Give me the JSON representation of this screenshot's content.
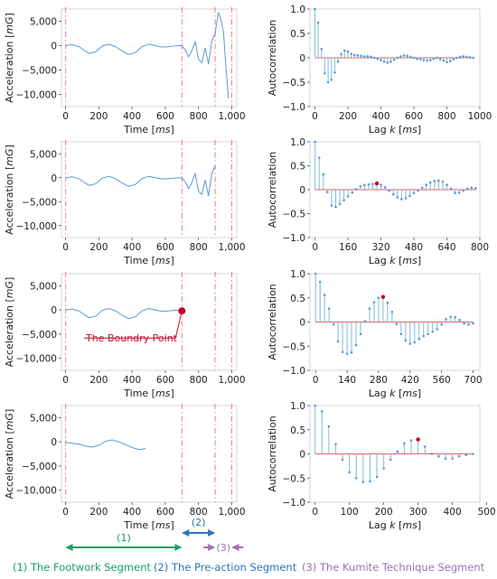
{
  "colors": {
    "signal": "#5b9bd5",
    "acf_stem": "#7fb9d9",
    "acf_red": "#e06666",
    "peak": "#c0001a",
    "boundary": "#ef7f7f",
    "seg1": "#1a9e6a",
    "seg2": "#2e75b6",
    "seg3": "#a26fb5",
    "axis": "#555555",
    "boundary_label": "#c8102e"
  },
  "left_axis": {
    "ylabel_text": "Acceleration",
    "ylabel_unit": "mG",
    "xlabel_text": "Time",
    "xlabel_unit": "ms",
    "yticks": [
      5000,
      0,
      -5000,
      -10000
    ],
    "ytick_labels": [
      "5,000",
      "0",
      "−5,000",
      "−10,000"
    ],
    "xticks": [
      0,
      200,
      400,
      600,
      800,
      1000
    ],
    "xtick_labels": [
      "0",
      "200",
      "400",
      "600",
      "800",
      "1,000"
    ],
    "xlim": [
      -25,
      1030
    ],
    "ylim": [
      -12500,
      7500
    ],
    "boundaries": [
      0,
      700,
      900,
      1000
    ]
  },
  "right_axis": {
    "ylabel": "Autocorrelation",
    "xlabel_text": "Lag",
    "xlabel_k": "k",
    "xlabel_unit": "ms",
    "yticks": [
      1.0,
      0.5,
      0.0,
      -0.5,
      -1.0
    ],
    "ytick_labels": [
      "1.0",
      "0.5",
      "0",
      "−0.5",
      "−1.0"
    ]
  },
  "annotations": {
    "boundary_point_label": "The Boundry Point",
    "seg1_short": "(1)",
    "seg2_short": "(2)",
    "seg3_short": "(3)",
    "seg1_label": "(1) The Footwork Segment",
    "seg2_label": "(2) The Pre-action Segment",
    "seg3_label": "(3) The Kumite Technique Segment"
  },
  "chart_data": [
    {
      "type": "line",
      "panel": "row1-signal",
      "xlabel": "Time [ms]",
      "ylabel": "Acceleration [mG]",
      "xlim": [
        -25,
        1030
      ],
      "ylim": [
        -12500,
        7500
      ],
      "x": [
        0,
        40,
        80,
        110,
        140,
        180,
        220,
        260,
        300,
        340,
        380,
        420,
        460,
        500,
        540,
        580,
        620,
        660,
        700,
        720,
        740,
        760,
        780,
        800,
        820,
        840,
        860,
        880,
        900,
        910,
        920,
        935,
        950,
        960,
        970,
        980
      ],
      "y": [
        0,
        200,
        -200,
        -900,
        -1600,
        -1300,
        -100,
        300,
        -200,
        -1100,
        -1800,
        -1400,
        -200,
        300,
        0,
        -300,
        -200,
        -50,
        0,
        -900,
        -2300,
        -1000,
        800,
        -2800,
        -3500,
        -500,
        -3800,
        900,
        2500,
        4800,
        6800,
        5300,
        2800,
        -2000,
        -6500,
        -10800
      ]
    },
    {
      "type": "line",
      "panel": "row2-signal",
      "xlabel": "Time [ms]",
      "ylabel": "Acceleration [mG]",
      "xlim": [
        -25,
        1030
      ],
      "ylim": [
        -12500,
        7500
      ],
      "x": [
        0,
        40,
        80,
        110,
        140,
        180,
        220,
        260,
        300,
        340,
        380,
        420,
        460,
        500,
        540,
        580,
        620,
        660,
        700,
        720,
        740,
        760,
        780,
        800,
        820,
        840,
        860,
        880,
        900
      ],
      "y": [
        0,
        200,
        -200,
        -900,
        -1600,
        -1300,
        -100,
        300,
        -200,
        -1100,
        -1800,
        -1400,
        -200,
        300,
        0,
        -300,
        -200,
        -50,
        0,
        -900,
        -2300,
        -1000,
        800,
        -2800,
        -3500,
        -500,
        -3800,
        900,
        2500
      ]
    },
    {
      "type": "line",
      "panel": "row3-signal",
      "xlabel": "Time [ms]",
      "ylabel": "Acceleration [mG]",
      "xlim": [
        -25,
        1030
      ],
      "ylim": [
        -12500,
        7500
      ],
      "boundary_point": [
        700,
        -200
      ],
      "x": [
        0,
        40,
        80,
        110,
        140,
        180,
        220,
        260,
        300,
        340,
        380,
        420,
        460,
        500,
        540,
        580,
        620,
        660,
        700
      ],
      "y": [
        0,
        200,
        -200,
        -900,
        -1600,
        -1300,
        -100,
        300,
        -200,
        -1100,
        -1800,
        -1400,
        -200,
        300,
        0,
        -300,
        -200,
        -50,
        -200
      ]
    },
    {
      "type": "line",
      "panel": "row4-signal",
      "xlabel": "Time [ms]",
      "ylabel": "Acceleration [mG]",
      "xlim": [
        -25,
        1030
      ],
      "ylim": [
        -12500,
        7500
      ],
      "x": [
        0,
        40,
        80,
        120,
        160,
        200,
        240,
        280,
        320,
        360,
        400,
        440,
        480
      ],
      "y": [
        -100,
        -300,
        -500,
        -900,
        -1100,
        -700,
        100,
        400,
        0,
        -600,
        -1200,
        -1600,
        -1400
      ]
    },
    {
      "type": "bar",
      "panel": "row1-acf",
      "xlabel": "Lag k [ms]",
      "ylabel": "Autocorrelation",
      "xlim": [
        -30,
        1000
      ],
      "ylim": [
        -1,
        1
      ],
      "xticks": [
        0,
        200,
        400,
        600,
        800,
        1000
      ],
      "peak_lag": 190,
      "lags": [
        0,
        20,
        40,
        60,
        80,
        100,
        120,
        140,
        160,
        180,
        200,
        220,
        240,
        260,
        280,
        300,
        320,
        340,
        360,
        380,
        400,
        420,
        440,
        460,
        480,
        500,
        520,
        540,
        560,
        580,
        600,
        620,
        640,
        660,
        680,
        700,
        720,
        740,
        760,
        780,
        800,
        820,
        840,
        860,
        880,
        900,
        920,
        940,
        960
      ],
      "values": [
        1.0,
        0.72,
        0.18,
        -0.32,
        -0.5,
        -0.45,
        -0.3,
        -0.08,
        0.08,
        0.15,
        0.13,
        0.08,
        0.06,
        0.05,
        0.04,
        0.03,
        0.03,
        0.02,
        0.0,
        -0.02,
        -0.05,
        -0.08,
        -0.1,
        -0.08,
        -0.04,
        0.0,
        0.03,
        0.05,
        0.04,
        0.02,
        0.0,
        -0.02,
        -0.03,
        -0.05,
        -0.06,
        -0.05,
        -0.02,
        0.0,
        -0.03,
        -0.06,
        -0.09,
        -0.07,
        -0.03,
        0.0,
        0.02,
        0.03,
        0.02,
        0.01,
        0.0
      ]
    },
    {
      "type": "bar",
      "panel": "row2-acf",
      "xlabel": "Lag k [ms]",
      "ylabel": "Autocorrelation",
      "xlim": [
        -25,
        800
      ],
      "ylim": [
        -1,
        1
      ],
      "xticks": [
        0,
        160,
        320,
        480,
        640,
        800
      ],
      "peak_lag": 300,
      "lags": [
        0,
        20,
        40,
        60,
        80,
        100,
        120,
        140,
        160,
        180,
        200,
        220,
        240,
        260,
        280,
        300,
        320,
        340,
        360,
        380,
        400,
        420,
        440,
        460,
        480,
        500,
        520,
        540,
        560,
        580,
        600,
        620,
        640,
        660,
        680,
        700,
        720,
        740,
        760,
        780
      ],
      "values": [
        1.0,
        0.67,
        0.32,
        -0.05,
        -0.33,
        -0.36,
        -0.3,
        -0.22,
        -0.14,
        -0.06,
        0.01,
        0.07,
        0.1,
        0.11,
        0.12,
        0.13,
        0.1,
        0.05,
        -0.02,
        -0.1,
        -0.16,
        -0.2,
        -0.18,
        -0.13,
        -0.07,
        -0.02,
        0.04,
        0.1,
        0.15,
        0.18,
        0.19,
        0.17,
        0.1,
        0.02,
        -0.07,
        -0.06,
        -0.02,
        0.02,
        0.04,
        0.03
      ]
    },
    {
      "type": "bar",
      "panel": "row3-acf",
      "xlabel": "Lag k [ms]",
      "ylabel": "Autocorrelation",
      "xlim": [
        -25,
        730
      ],
      "ylim": [
        -1,
        1
      ],
      "xticks": [
        0,
        140,
        280,
        420,
        560,
        700
      ],
      "peak_lag": 300,
      "lags": [
        0,
        20,
        40,
        60,
        80,
        100,
        120,
        140,
        160,
        180,
        200,
        220,
        240,
        260,
        280,
        300,
        320,
        340,
        360,
        380,
        400,
        420,
        440,
        460,
        480,
        500,
        520,
        540,
        560,
        580,
        600,
        620,
        640,
        660,
        680,
        700
      ],
      "values": [
        1.0,
        0.83,
        0.56,
        0.28,
        -0.05,
        -0.4,
        -0.62,
        -0.66,
        -0.63,
        -0.48,
        -0.25,
        0.02,
        0.28,
        0.41,
        0.5,
        0.52,
        0.4,
        0.21,
        -0.04,
        -0.25,
        -0.38,
        -0.45,
        -0.42,
        -0.35,
        -0.29,
        -0.25,
        -0.2,
        -0.15,
        -0.05,
        0.06,
        0.11,
        0.1,
        0.04,
        -0.03,
        -0.05,
        -0.03
      ]
    },
    {
      "type": "bar",
      "panel": "row4-acf",
      "xlabel": "Lag k [ms]",
      "ylabel": "Autocorrelation",
      "xlim": [
        -15,
        480
      ],
      "ylim": [
        -1,
        1
      ],
      "xticks": [
        0,
        100,
        200,
        300,
        400,
        500
      ],
      "peak_lag": 300,
      "lags": [
        0,
        20,
        40,
        60,
        80,
        100,
        120,
        140,
        160,
        180,
        200,
        220,
        240,
        260,
        280,
        300,
        320,
        340,
        360,
        380,
        400,
        420,
        440,
        460
      ],
      "values": [
        1.0,
        0.88,
        0.57,
        0.2,
        -0.12,
        -0.38,
        -0.5,
        -0.58,
        -0.57,
        -0.48,
        -0.3,
        -0.12,
        0.05,
        0.22,
        0.28,
        0.3,
        0.15,
        0.0,
        -0.05,
        -0.1,
        -0.1,
        -0.05,
        -0.02,
        0.0
      ]
    }
  ]
}
